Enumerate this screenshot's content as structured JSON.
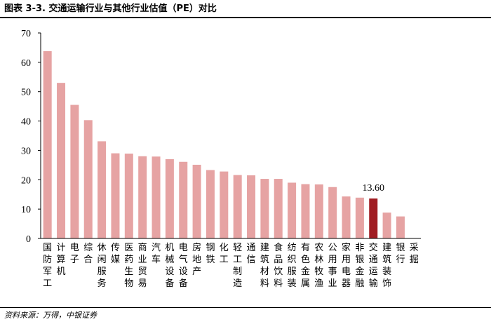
{
  "header": {
    "title": "图表 3-3. 交通运输行业与其他行业估值（PE）对比"
  },
  "footer": {
    "source": "资料来源：万得，中银证券"
  },
  "colors": {
    "bar": "#E6A3A3",
    "highlight": "#A01C22"
  },
  "chart_data": {
    "type": "bar",
    "title": "",
    "xlabel": "",
    "ylabel": "",
    "ylim": [
      0,
      70
    ],
    "yticks": [
      0,
      10,
      20,
      30,
      40,
      50,
      60,
      70
    ],
    "grid": false,
    "categories": [
      "国防军工",
      "计算机",
      "电子",
      "综合",
      "休闲服务",
      "传媒",
      "医药生物",
      "商业贸易",
      "汽车",
      "机械设备",
      "电气设备",
      "房地产",
      "钢铁",
      "化工",
      "轻工制造",
      "通信",
      "建筑材料",
      "食品饮料",
      "纺织服装",
      "有色金属",
      "农林牧渔",
      "公用事业",
      "家用电器",
      "非银金融",
      "交通运输",
      "建筑装饰",
      "银行",
      "采掘"
    ],
    "values": [
      63.8,
      53.0,
      45.5,
      40.3,
      33.1,
      29.0,
      28.9,
      28.0,
      27.9,
      27.0,
      26.1,
      25.1,
      23.3,
      22.8,
      21.6,
      21.5,
      20.3,
      20.3,
      19.0,
      18.5,
      18.4,
      17.5,
      14.3,
      13.9,
      13.6,
      8.8,
      7.5,
      0.0
    ],
    "highlight": {
      "category": "交通运输",
      "label": "13.60"
    }
  }
}
